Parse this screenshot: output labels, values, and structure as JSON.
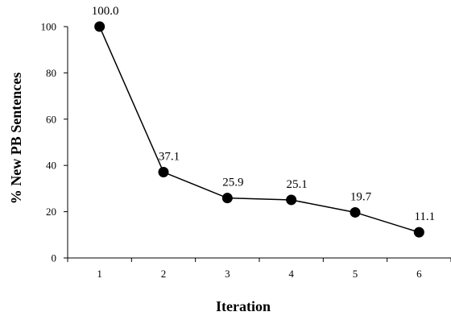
{
  "chart_data": {
    "type": "line",
    "title": "",
    "xlabel": "Iteration",
    "ylabel": "% New PB Sentences",
    "x": [
      1,
      2,
      3,
      4,
      5,
      6
    ],
    "categories": [
      "1",
      "2",
      "3",
      "4",
      "5",
      "6"
    ],
    "series": [
      {
        "values": [
          100.0,
          37.1,
          25.9,
          25.1,
          19.7,
          11.1
        ],
        "data_labels": [
          "100.0",
          "37.1",
          "25.9",
          "25.1",
          "19.7",
          "11.1"
        ],
        "color": "#000000",
        "marker": "circle"
      }
    ],
    "ylim": [
      0,
      100
    ],
    "yticks": [
      0,
      20,
      40,
      60,
      80,
      100
    ],
    "ytick_labels": [
      "0",
      "20",
      "40",
      "60",
      "80",
      "100"
    ],
    "grid": false,
    "legend": "none"
  }
}
